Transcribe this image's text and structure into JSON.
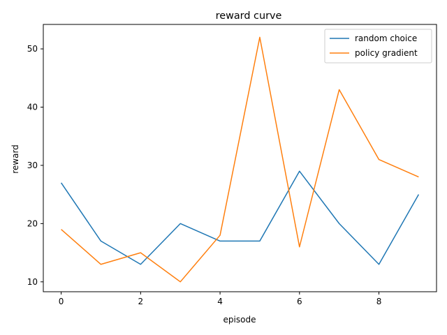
{
  "chart_data": {
    "type": "line",
    "title": "reward curve",
    "xlabel": "episode",
    "ylabel": "reward",
    "x": [
      0,
      1,
      2,
      3,
      4,
      5,
      6,
      7,
      8,
      9
    ],
    "xlim": [
      -0.45,
      9.45
    ],
    "ylim": [
      8.3,
      54.2
    ],
    "xticks": [
      0,
      2,
      4,
      6,
      8
    ],
    "yticks": [
      10,
      20,
      30,
      40,
      50
    ],
    "grid": false,
    "legend_position": "top-right",
    "series": [
      {
        "name": "random choice",
        "color": "#1f77b4",
        "values": [
          27,
          17,
          13,
          20,
          17,
          17,
          29,
          20,
          13,
          25
        ]
      },
      {
        "name": "policy gradient",
        "color": "#ff7f0e",
        "values": [
          19,
          13,
          15,
          10,
          18,
          52,
          16,
          43,
          31,
          28
        ]
      }
    ]
  }
}
